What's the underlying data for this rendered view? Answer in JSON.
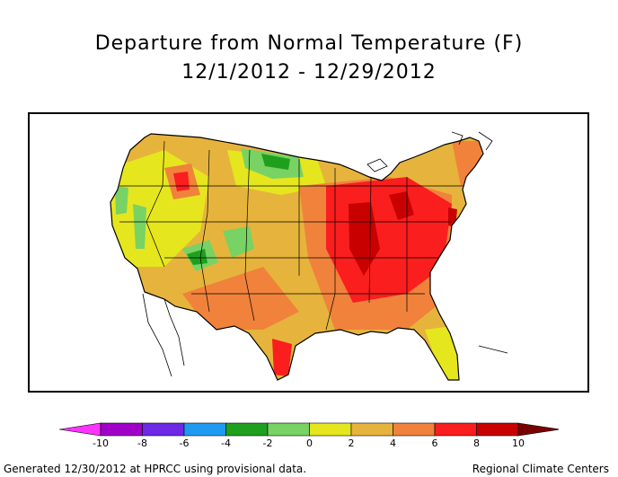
{
  "title": {
    "line1": "Departure from Normal Temperature (F)",
    "line2": "12/1/2012 - 12/29/2012"
  },
  "legend": {
    "unit": "F",
    "ticks": [
      "-10",
      "-8",
      "-6",
      "-4",
      "-2",
      "0",
      "2",
      "4",
      "6",
      "8",
      "10"
    ],
    "bins": [
      {
        "range": "< -10",
        "color": "#ff33ff"
      },
      {
        "range": "-10 to -8",
        "color": "#a000c8"
      },
      {
        "range": "-8 to -6",
        "color": "#6e28e6"
      },
      {
        "range": "-6 to -4",
        "color": "#1e9bf0"
      },
      {
        "range": "-4 to -2",
        "color": "#1ea01e"
      },
      {
        "range": "-2 to 0",
        "color": "#78d264"
      },
      {
        "range": "0 to 2",
        "color": "#e6e61e"
      },
      {
        "range": "2 to 4",
        "color": "#e6b43c"
      },
      {
        "range": "4 to 6",
        "color": "#f0823c"
      },
      {
        "range": "6 to 8",
        "color": "#fa1e1e"
      },
      {
        "range": "8 to 10",
        "color": "#c80000"
      },
      {
        "range": "> 10",
        "color": "#7a0000"
      }
    ]
  },
  "footer": {
    "left": "Generated 12/30/2012 at HPRCC using provisional data.",
    "right": "Regional Climate Centers"
  }
}
